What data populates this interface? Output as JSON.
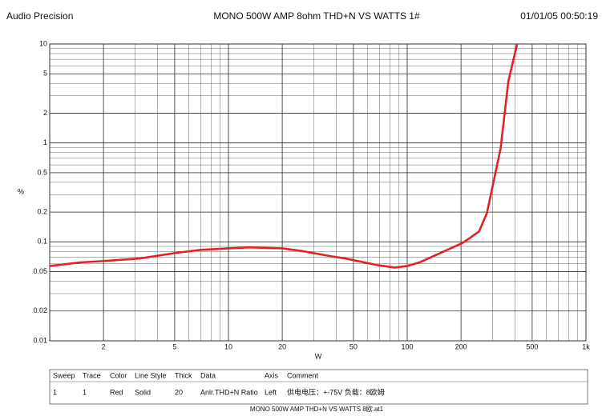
{
  "header": {
    "brand": "Audio Precision",
    "timestamp": "01/01/05 00:50:19"
  },
  "chart_data": {
    "type": "line",
    "title": "MONO 500W AMP  8ohm THD+N  VS   WATTS  1#",
    "xlabel": "W",
    "ylabel": "%",
    "xscale": "log",
    "yscale": "log",
    "grid": true,
    "minor_grid": true,
    "xlim": [
      1,
      1000
    ],
    "ylim": [
      0.01,
      10
    ],
    "xticks": [
      2,
      5,
      10,
      20,
      50,
      100,
      200,
      500,
      {
        "value": 1000,
        "label": "1k"
      }
    ],
    "yticks": [
      0.01,
      0.02,
      0.05,
      0.1,
      0.2,
      0.5,
      1,
      2,
      5,
      10
    ],
    "x": [
      1,
      1.48,
      2,
      3.2,
      5,
      7,
      10,
      13,
      20,
      25.6,
      36.8,
      45,
      68.9,
      85,
      100,
      117,
      141,
      205,
      252,
      279,
      300,
      333,
      368,
      412
    ],
    "series": [
      {
        "name": "Anlr.THD+N Ratio",
        "color": "#e32222",
        "values": [
          0.057,
          0.062,
          0.064,
          0.068,
          0.077,
          0.083,
          0.086,
          0.088,
          0.086,
          0.081,
          0.072,
          0.068,
          0.058,
          0.055,
          0.057,
          0.062,
          0.072,
          0.098,
          0.127,
          0.195,
          0.36,
          0.88,
          4.2,
          10
        ]
      }
    ]
  },
  "legend_table": {
    "columns": [
      "Sweep",
      "Trace",
      "Color",
      "Line Style",
      "Thick",
      "Data",
      "Axis",
      "Comment"
    ],
    "rows": [
      [
        "1",
        "1",
        "Red",
        "Solid",
        "20",
        "Anlr.THD+N Ratio",
        "Left",
        "供电电压：+-75V 负载：8欧姆"
      ]
    ]
  },
  "footer": "MONO 500W AMP THD+N VS WATTS 8欧.at1"
}
